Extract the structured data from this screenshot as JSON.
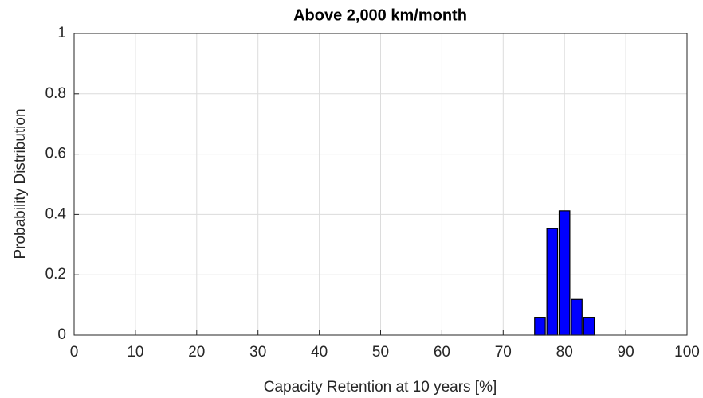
{
  "chart_data": {
    "type": "histogram",
    "title": "Above 2,000 km/month",
    "xlabel": "Capacity Retention at 10 years [%]",
    "ylabel": "Probability Distribution",
    "bins": [
      75,
      77,
      79,
      81,
      83,
      85
    ],
    "values": [
      0.059,
      0.353,
      0.412,
      0.118,
      0.059
    ],
    "color": "#0000ff",
    "xlim": [
      0,
      100
    ],
    "xticks": [
      0,
      10,
      20,
      30,
      40,
      50,
      60,
      70,
      80,
      90,
      100
    ],
    "ylim": [
      0,
      1
    ],
    "yticks": [
      0,
      0.2,
      0.4,
      0.6,
      0.8,
      1
    ],
    "grid": true
  }
}
